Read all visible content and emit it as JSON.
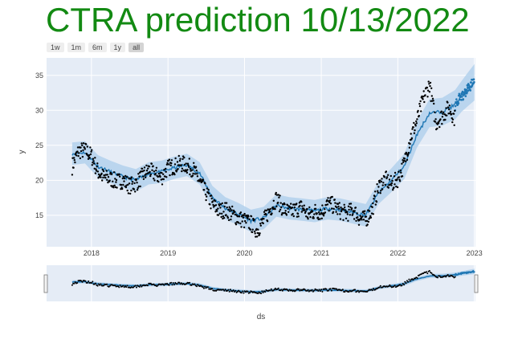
{
  "title": "CTRA prediction 10/13/2022",
  "range_buttons": [
    {
      "label": "1w",
      "active": false
    },
    {
      "label": "1m",
      "active": false
    },
    {
      "label": "6m",
      "active": false
    },
    {
      "label": "1y",
      "active": false
    },
    {
      "label": "all",
      "active": true
    }
  ],
  "colors": {
    "title": "#138a13",
    "plot_bg": "#e5ecf6",
    "forecast_line": "#1f77b4",
    "band": "#b3d1ec",
    "points": "#000000"
  },
  "chart_data": {
    "type": "scatter",
    "xlabel": "ds",
    "ylabel": "y",
    "x_ticks": [
      "2018",
      "2019",
      "2020",
      "2021",
      "2022",
      "2023"
    ],
    "y_ticks": [
      15,
      20,
      25,
      30,
      35
    ],
    "xlim": [
      "2017-06-01",
      "2023-01-06"
    ],
    "ylim": [
      10.5,
      37.5
    ],
    "grid": true,
    "rangeslider": true,
    "series": [
      {
        "kind": "actual",
        "points": [
          [
            "2017-10-01",
            22.0
          ],
          [
            "2017-11-01",
            24.2
          ],
          [
            "2017-12-01",
            24.3
          ],
          [
            "2018-01-01",
            23.5
          ],
          [
            "2018-02-01",
            21.2
          ],
          [
            "2018-03-01",
            20.4
          ],
          [
            "2018-04-01",
            20.2
          ],
          [
            "2018-05-01",
            19.8
          ],
          [
            "2018-06-01",
            20.0
          ],
          [
            "2018-07-01",
            19.2
          ],
          [
            "2018-08-01",
            19.5
          ],
          [
            "2018-09-01",
            20.6
          ],
          [
            "2018-10-01",
            21.5
          ],
          [
            "2018-11-01",
            20.8
          ],
          [
            "2018-12-01",
            20.4
          ],
          [
            "2019-01-01",
            21.8
          ],
          [
            "2019-02-01",
            22.0
          ],
          [
            "2019-03-01",
            22.4
          ],
          [
            "2019-04-01",
            22.1
          ],
          [
            "2019-05-01",
            21.6
          ],
          [
            "2019-06-01",
            19.8
          ],
          [
            "2019-07-01",
            18.2
          ],
          [
            "2019-08-01",
            16.5
          ],
          [
            "2019-09-01",
            15.6
          ],
          [
            "2019-10-01",
            15.8
          ],
          [
            "2019-11-01",
            15.2
          ],
          [
            "2019-12-01",
            14.6
          ],
          [
            "2020-01-01",
            14.2
          ],
          [
            "2020-02-01",
            13.8
          ],
          [
            "2020-03-01",
            12.8
          ],
          [
            "2020-04-01",
            14.2
          ],
          [
            "2020-05-01",
            15.8
          ],
          [
            "2020-06-01",
            17.4
          ],
          [
            "2020-07-01",
            16.0
          ],
          [
            "2020-08-01",
            15.4
          ],
          [
            "2020-09-01",
            15.8
          ],
          [
            "2020-10-01",
            16.2
          ],
          [
            "2020-11-01",
            15.0
          ],
          [
            "2020-12-01",
            15.6
          ],
          [
            "2021-01-01",
            15.4
          ],
          [
            "2021-02-01",
            16.6
          ],
          [
            "2021-03-01",
            16.4
          ],
          [
            "2021-04-01",
            15.6
          ],
          [
            "2021-05-01",
            15.2
          ],
          [
            "2021-06-01",
            15.8
          ],
          [
            "2021-07-01",
            14.6
          ],
          [
            "2021-08-01",
            14.4
          ],
          [
            "2021-09-01",
            15.8
          ],
          [
            "2021-10-01",
            19.0
          ],
          [
            "2021-11-01",
            20.2
          ],
          [
            "2021-12-01",
            19.4
          ],
          [
            "2022-01-01",
            20.2
          ],
          [
            "2022-02-01",
            22.4
          ],
          [
            "2022-03-01",
            26.0
          ],
          [
            "2022-04-01",
            28.4
          ],
          [
            "2022-05-01",
            31.5
          ],
          [
            "2022-06-01",
            33.8
          ],
          [
            "2022-07-01",
            28.2
          ],
          [
            "2022-08-01",
            29.2
          ],
          [
            "2022-09-01",
            30.4
          ],
          [
            "2022-10-01",
            28.8
          ]
        ]
      },
      {
        "kind": "forecast",
        "points": [
          [
            "2017-10-01",
            23.8
          ],
          [
            "2017-12-01",
            24.0
          ],
          [
            "2018-02-01",
            22.0
          ],
          [
            "2018-04-01",
            21.2
          ],
          [
            "2018-06-01",
            20.5
          ],
          [
            "2018-08-01",
            20.0
          ],
          [
            "2018-10-01",
            21.0
          ],
          [
            "2018-12-01",
            21.2
          ],
          [
            "2019-02-01",
            21.8
          ],
          [
            "2019-04-01",
            22.2
          ],
          [
            "2019-06-01",
            21.0
          ],
          [
            "2019-08-01",
            17.6
          ],
          [
            "2019-10-01",
            16.0
          ],
          [
            "2019-12-01",
            15.2
          ],
          [
            "2020-02-01",
            14.2
          ],
          [
            "2020-04-01",
            14.6
          ],
          [
            "2020-06-01",
            16.4
          ],
          [
            "2020-08-01",
            16.0
          ],
          [
            "2020-10-01",
            15.8
          ],
          [
            "2020-12-01",
            15.6
          ],
          [
            "2021-02-01",
            16.0
          ],
          [
            "2021-04-01",
            15.8
          ],
          [
            "2021-06-01",
            15.4
          ],
          [
            "2021-08-01",
            15.0
          ],
          [
            "2021-10-01",
            18.2
          ],
          [
            "2021-12-01",
            20.0
          ],
          [
            "2022-02-01",
            22.0
          ],
          [
            "2022-04-01",
            26.5
          ],
          [
            "2022-06-01",
            29.6
          ],
          [
            "2022-08-01",
            29.8
          ],
          [
            "2022-10-01",
            30.8
          ],
          [
            "2022-11-01",
            32.0
          ],
          [
            "2022-12-01",
            33.0
          ],
          [
            "2023-01-01",
            34.0
          ]
        ],
        "band_width": [
          1.6,
          1.6,
          1.6,
          1.6,
          1.6,
          1.6,
          1.6,
          1.6,
          1.6,
          1.6,
          1.6,
          1.6,
          1.6,
          1.6,
          1.6,
          1.6,
          1.6,
          1.6,
          1.6,
          1.6,
          1.6,
          1.6,
          1.6,
          1.6,
          1.6,
          1.7,
          1.8,
          1.9,
          2.0,
          2.0,
          2.1,
          2.2,
          2.4,
          2.6
        ]
      }
    ]
  }
}
